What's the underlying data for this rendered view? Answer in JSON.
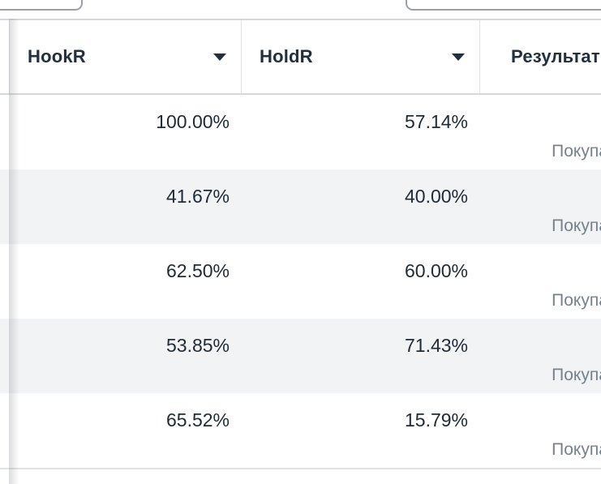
{
  "filters": {
    "left_input_value": "",
    "right_input_value": ""
  },
  "table": {
    "columns": [
      {
        "label": "HookR",
        "sortable": true
      },
      {
        "label": "HoldR",
        "sortable": true
      },
      {
        "label": "Результат",
        "sortable": false
      }
    ],
    "rows": [
      {
        "hookR": "100.00%",
        "holdR": "57.14%",
        "result": "Покупать"
      },
      {
        "hookR": "41.67%",
        "holdR": "40.00%",
        "result": "Покупать"
      },
      {
        "hookR": "62.50%",
        "holdR": "60.00%",
        "result": "Покупать"
      },
      {
        "hookR": "53.85%",
        "holdR": "71.43%",
        "result": "Покупать"
      },
      {
        "hookR": "65.52%",
        "holdR": "15.79%",
        "result": "Покупать"
      }
    ]
  },
  "icons": {
    "sort_caret": "caret-down-filled"
  },
  "colors": {
    "header_text": "#22303C",
    "value_text": "#212B36",
    "muted_text": "#76818B",
    "row_stripe": "#F2F3F5",
    "table_border": "#D6D8DB",
    "input_border": "#97A1B2"
  }
}
